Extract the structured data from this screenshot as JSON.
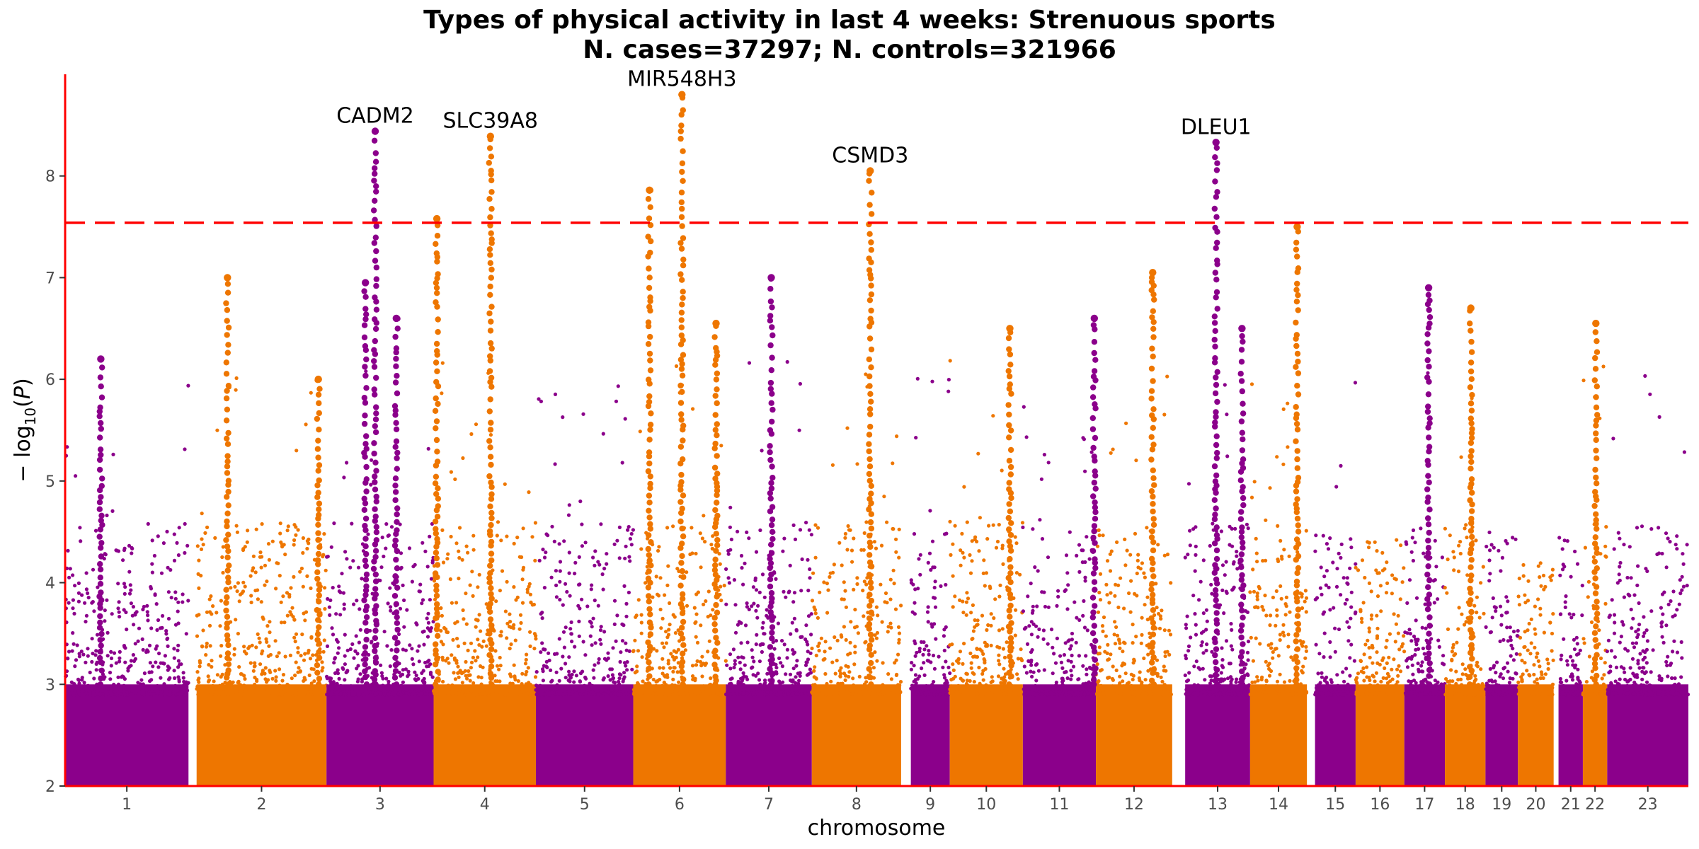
{
  "chart_data": {
    "type": "scatter",
    "title": "Types of physical activity in last 4 weeks: Strenuous sports",
    "subtitle": "N. cases=37297; N. controls=321966",
    "xlabel": "chromosome",
    "ylabel": "− log10(P)",
    "ylim": [
      2,
      9
    ],
    "yticks": [
      2,
      3,
      4,
      5,
      6,
      7,
      8
    ],
    "significance_line": 7.54,
    "colors": {
      "purple": "#8B008B",
      "orange": "#EE7600",
      "line": "#FF0000",
      "axis": "#FF0000"
    },
    "chromosomes": [
      {
        "label": "1",
        "span": [
          0.0,
          7.6
        ],
        "color": "purple",
        "peak": 6.2
      },
      {
        "label": "2",
        "span": [
          8.1,
          16.1
        ],
        "color": "orange",
        "peak": 7.0
      },
      {
        "label": "3",
        "span": [
          16.1,
          22.7
        ],
        "color": "purple",
        "peak": 8.44
      },
      {
        "label": "4",
        "span": [
          22.7,
          29.0
        ],
        "color": "orange",
        "peak": 8.39
      },
      {
        "label": "5",
        "span": [
          29.0,
          35.0
        ],
        "color": "purple",
        "peak": 6.0
      },
      {
        "label": "6",
        "span": [
          35.0,
          40.7
        ],
        "color": "orange",
        "peak": 8.8
      },
      {
        "label": "7",
        "span": [
          40.7,
          46.0
        ],
        "color": "purple",
        "peak": 7.0
      },
      {
        "label": "8",
        "span": [
          46.0,
          51.5
        ],
        "color": "orange",
        "peak": 8.05
      },
      {
        "label": "9",
        "span": [
          52.1,
          54.5
        ],
        "color": "purple",
        "peak": 6.8
      },
      {
        "label": "10",
        "span": [
          54.5,
          59.0
        ],
        "color": "orange",
        "peak": 6.5
      },
      {
        "label": "11",
        "span": [
          59.0,
          63.5
        ],
        "color": "purple",
        "peak": 6.6
      },
      {
        "label": "12",
        "span": [
          63.5,
          68.2
        ],
        "color": "orange",
        "peak": 7.05
      },
      {
        "label": "13",
        "span": [
          69.0,
          73.0
        ],
        "color": "purple",
        "peak": 8.33
      },
      {
        "label": "14",
        "span": [
          73.0,
          76.5
        ],
        "color": "orange",
        "peak": 7.5
      },
      {
        "label": "15",
        "span": [
          77.0,
          79.5
        ],
        "color": "purple",
        "peak": 6.2
      },
      {
        "label": "16",
        "span": [
          79.5,
          82.5
        ],
        "color": "orange",
        "peak": 4.5
      },
      {
        "label": "17",
        "span": [
          82.5,
          85.0
        ],
        "color": "purple",
        "peak": 6.9
      },
      {
        "label": "18",
        "span": [
          85.0,
          87.5
        ],
        "color": "orange",
        "peak": 6.7
      },
      {
        "label": "19",
        "span": [
          87.5,
          89.5
        ],
        "color": "purple",
        "peak": 4.5
      },
      {
        "label": "20",
        "span": [
          89.5,
          91.7
        ],
        "color": "orange",
        "peak": 4.2
      },
      {
        "label": "21",
        "span": [
          92.0,
          93.5
        ],
        "color": "purple",
        "peak": 6.05
      },
      {
        "label": "22",
        "span": [
          93.5,
          95.0
        ],
        "color": "orange",
        "peak": 6.55
      },
      {
        "label": "23",
        "span": [
          95.0,
          100.0
        ],
        "color": "purple",
        "peak": 6.1
      }
    ],
    "towers": [
      {
        "pos": 2.2,
        "top": 6.2,
        "color": "purple"
      },
      {
        "pos": 10.0,
        "top": 7.0,
        "color": "orange"
      },
      {
        "pos": 15.6,
        "top": 6.0,
        "color": "orange"
      },
      {
        "pos": 18.5,
        "top": 6.95,
        "color": "purple"
      },
      {
        "pos": 19.1,
        "top": 8.44,
        "color": "purple"
      },
      {
        "pos": 20.4,
        "top": 6.6,
        "color": "purple"
      },
      {
        "pos": 22.9,
        "top": 7.58,
        "color": "orange"
      },
      {
        "pos": 26.2,
        "top": 8.39,
        "color": "orange"
      },
      {
        "pos": 36.0,
        "top": 7.86,
        "color": "orange"
      },
      {
        "pos": 38.0,
        "top": 8.8,
        "color": "orange"
      },
      {
        "pos": 40.1,
        "top": 6.55,
        "color": "orange"
      },
      {
        "pos": 43.5,
        "top": 7.0,
        "color": "purple"
      },
      {
        "pos": 49.6,
        "top": 8.05,
        "color": "orange"
      },
      {
        "pos": 58.2,
        "top": 6.5,
        "color": "orange"
      },
      {
        "pos": 63.4,
        "top": 6.6,
        "color": "purple"
      },
      {
        "pos": 67.0,
        "top": 7.05,
        "color": "orange"
      },
      {
        "pos": 70.9,
        "top": 8.33,
        "color": "purple"
      },
      {
        "pos": 72.5,
        "top": 6.5,
        "color": "purple"
      },
      {
        "pos": 75.9,
        "top": 7.5,
        "color": "orange"
      },
      {
        "pos": 84.0,
        "top": 6.9,
        "color": "purple"
      },
      {
        "pos": 86.6,
        "top": 6.7,
        "color": "orange"
      },
      {
        "pos": 94.3,
        "top": 6.55,
        "color": "orange"
      }
    ],
    "annotations": [
      {
        "label": "CADM2",
        "x": 19.1,
        "y": 8.44
      },
      {
        "label": "SLC39A8",
        "x": 26.2,
        "y": 8.39
      },
      {
        "label": "MIR548H3",
        "x": 38.0,
        "y": 8.8
      },
      {
        "label": "CSMD3",
        "x": 49.6,
        "y": 8.05
      },
      {
        "label": "DLEU1",
        "x": 70.9,
        "y": 8.33
      }
    ]
  }
}
